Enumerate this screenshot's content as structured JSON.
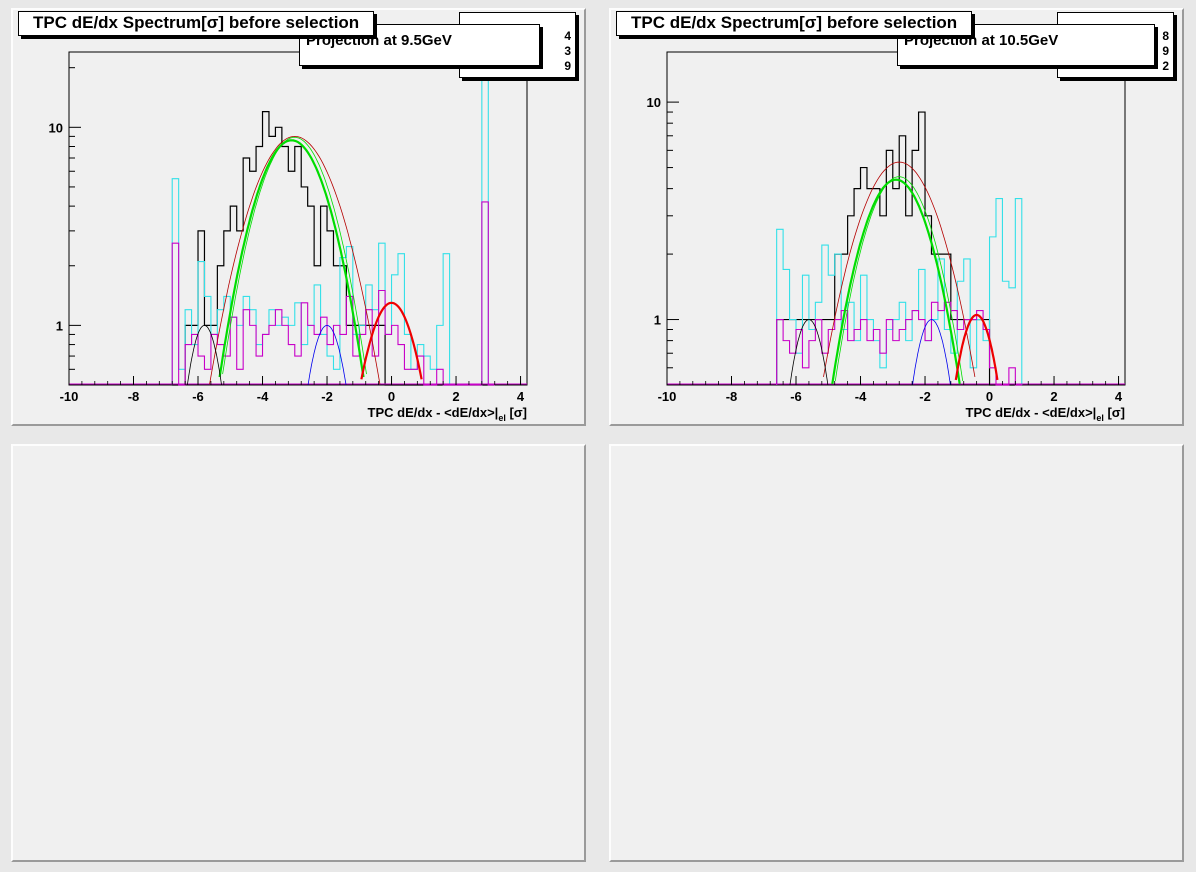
{
  "pads": [
    {
      "title": "TPC dE/dx Spectrum[σ] before selection",
      "projection": "Projection at 9.5GeV",
      "stats": [
        "4",
        "3",
        "9"
      ],
      "xlabel_main": "TPC dE/dx - <dE/dx>|",
      "xlabel_sub": "el",
      "xlabel_unit": " [σ]",
      "xticks": [
        "-10",
        "-8",
        "-6",
        "-4",
        "-2",
        "0",
        "2",
        "4"
      ],
      "yticks": [
        "1",
        "10"
      ]
    },
    {
      "title": "TPC dE/dx Spectrum[σ] before selection",
      "projection": "Projection at 10.5GeV",
      "stats": [
        "8",
        "9",
        "2"
      ],
      "xlabel_main": "TPC dE/dx - <dE/dx>|",
      "xlabel_sub": "el",
      "xlabel_unit": " [σ]",
      "xticks": [
        "-10",
        "-8",
        "-6",
        "-4",
        "-2",
        "0",
        "2",
        "4"
      ],
      "yticks": [
        "1",
        "10"
      ]
    }
  ],
  "colors": {
    "black": "#000000",
    "cyan": "#33e0e8",
    "magenta": "#c800c8",
    "green": "#00dd00",
    "red": "#ee0000",
    "blue": "#0000ee",
    "darkred": "#b40000"
  },
  "chart_data": [
    {
      "type": "line",
      "title": "TPC dE/dx Spectrum[σ] before selection",
      "subtitle": "Projection at 9.5GeV",
      "xlabel": "TPC dE/dx - <dE/dx>|el [σ]",
      "ylabel": "",
      "xlim": [
        -10,
        4.2
      ],
      "ylim": [
        0.5,
        24
      ],
      "y_scale": "log",
      "x": [
        -6.7,
        -6.5,
        -6.3,
        -6.1,
        -5.9,
        -5.7,
        -5.5,
        -5.3,
        -5.1,
        -4.9,
        -4.7,
        -4.5,
        -4.3,
        -4.1,
        -3.9,
        -3.7,
        -3.5,
        -3.3,
        -3.1,
        -2.9,
        -2.7,
        -2.5,
        -2.3,
        -2.1,
        -1.9,
        -1.7,
        -1.5,
        -1.3,
        -1.1,
        -0.9,
        -0.7,
        -0.5,
        -0.3,
        -0.1,
        0.1,
        0.3,
        0.5,
        0.7,
        0.9,
        1.1,
        1.3,
        1.5,
        1.7,
        1.9,
        2.1,
        2.3,
        2.5,
        2.7,
        2.9,
        3.1
      ],
      "series": [
        {
          "color": "#000000",
          "style": "histogram",
          "values": [
            0,
            0,
            1,
            1,
            3,
            1,
            1,
            2,
            3,
            4,
            3,
            7,
            6,
            8,
            12,
            9,
            10,
            8,
            6,
            8,
            5,
            4,
            2,
            4,
            3,
            2,
            2,
            1,
            1,
            1,
            1,
            1,
            1,
            0,
            0,
            0,
            0,
            0,
            0,
            0,
            0,
            0,
            0,
            0,
            0,
            0,
            0,
            0,
            0,
            0
          ]
        },
        {
          "color": "#33e0e8",
          "style": "histogram",
          "values": [
            5.5,
            0.6,
            1.2,
            0.8,
            2.1,
            1.4,
            0.9,
            1.2,
            1.4,
            1.1,
            1.0,
            1.4,
            1.2,
            0.8,
            0.9,
            1.2,
            1.0,
            1.1,
            1.0,
            1.3,
            0.8,
            1.0,
            1.6,
            0.9,
            0.7,
            0.6,
            2.2,
            2.5,
            0.9,
            1.0,
            1.6,
            1.2,
            2.6,
            0.9,
            1.8,
            2.3,
            0.9,
            0.6,
            0.8,
            0.7,
            0.6,
            1.0,
            2.3,
            0,
            0,
            0,
            0,
            0,
            18,
            0
          ]
        },
        {
          "color": "#c800c8",
          "style": "histogram",
          "values": [
            2.6,
            0,
            0.8,
            0.9,
            0.7,
            0.6,
            0.9,
            0.8,
            0.7,
            1.1,
            0.6,
            1.2,
            1.0,
            0.7,
            0.9,
            1.0,
            1.2,
            1.0,
            0.8,
            0.7,
            1.3,
            1.0,
            0.9,
            1.1,
            0.8,
            1.0,
            0.9,
            1.4,
            0.7,
            0.9,
            1.2,
            0.7,
            1.5,
            0.9,
            1.0,
            0.8,
            0.6,
            0.6,
            0.7,
            0.5,
            0.5,
            0.6,
            0.5,
            0,
            0,
            0,
            0,
            0,
            4.2,
            0
          ]
        },
        {
          "name": "",
          "color": "#b40000",
          "style": "fit-total",
          "amplitude": 9.0,
          "mean": -3.0,
          "sigma": 1.1
        },
        {
          "name": "",
          "color": "#00dd00",
          "style": "fit-pion",
          "amplitude": 8.6,
          "mean": -3.1,
          "sigma": 0.95
        },
        {
          "name": "",
          "color": "#ee0000",
          "style": "fit-electron",
          "amplitude": 1.3,
          "mean": 0.0,
          "sigma": 0.7
        },
        {
          "name": "",
          "color": "#0000ee",
          "style": "fit-kaon",
          "amplitude": 1.0,
          "mean": -2.0,
          "sigma": 0.5
        },
        {
          "name": "",
          "color": "#000000",
          "style": "fit-proton",
          "amplitude": 1.0,
          "mean": -5.8,
          "sigma": 0.45
        }
      ]
    },
    {
      "type": "line",
      "title": "TPC dE/dx Spectrum[σ] before selection",
      "subtitle": "Projection at 10.5GeV",
      "xlabel": "TPC dE/dx - <dE/dx>|el [σ]",
      "ylabel": "",
      "xlim": [
        -10,
        4.2
      ],
      "ylim": [
        0.5,
        17
      ],
      "y_scale": "log",
      "x": [
        -6.5,
        -6.3,
        -6.1,
        -5.9,
        -5.7,
        -5.5,
        -5.3,
        -5.1,
        -4.9,
        -4.7,
        -4.5,
        -4.3,
        -4.1,
        -3.9,
        -3.7,
        -3.5,
        -3.3,
        -3.1,
        -2.9,
        -2.7,
        -2.5,
        -2.3,
        -2.1,
        -1.9,
        -1.7,
        -1.5,
        -1.3,
        -1.1,
        -0.9,
        -0.7,
        -0.5,
        -0.3,
        -0.1,
        0.1,
        0.3,
        0.5,
        0.7,
        0.9
      ],
      "series": [
        {
          "color": "#000000",
          "style": "histogram",
          "values": [
            1,
            1,
            1,
            1,
            1,
            1,
            1,
            1,
            1,
            2,
            2,
            3,
            4,
            5,
            4,
            4,
            3,
            6,
            4,
            7,
            3,
            6,
            9,
            3,
            2,
            2,
            2,
            1,
            1,
            1,
            1,
            1,
            1,
            0,
            0,
            0,
            0,
            0
          ]
        },
        {
          "color": "#33e0e8",
          "style": "histogram",
          "values": [
            2.6,
            1.7,
            1.0,
            0.7,
            1.6,
            0.9,
            1.2,
            2.2,
            1.6,
            2.0,
            0.9,
            1.2,
            0.8,
            1.6,
            1.0,
            0.8,
            0.6,
            0.9,
            1.0,
            1.2,
            0.8,
            1.1,
            1.7,
            0.8,
            1.0,
            1.9,
            0.9,
            0.7,
            1.5,
            1.9,
            0.6,
            1.0,
            0.8,
            2.4,
            3.6,
            1.5,
            1.4,
            3.6
          ]
        },
        {
          "color": "#c800c8",
          "style": "histogram",
          "values": [
            1.0,
            0.8,
            0.7,
            0.9,
            0.6,
            0.8,
            1.0,
            0.7,
            0.9,
            1.0,
            1.1,
            0.8,
            0.9,
            1.0,
            0.8,
            0.9,
            0.7,
            1.0,
            0.8,
            0.9,
            1.0,
            1.1,
            1.0,
            0.8,
            1.2,
            1.1,
            1.2,
            1.1,
            0.9,
            1.0,
            1.0,
            1.1,
            0.9,
            0.6,
            0.5,
            0.5,
            0.6,
            0.5
          ]
        },
        {
          "name": "",
          "color": "#b40000",
          "style": "fit-total",
          "amplitude": 5.3,
          "mean": -2.8,
          "sigma": 1.1
        },
        {
          "name": "",
          "color": "#00dd00",
          "style": "fit-pion",
          "amplitude": 4.4,
          "mean": -2.9,
          "sigma": 0.95
        },
        {
          "name": "",
          "color": "#ee0000",
          "style": "fit-electron",
          "amplitude": 1.05,
          "mean": -0.4,
          "sigma": 0.55
        },
        {
          "name": "",
          "color": "#0000ee",
          "style": "fit-kaon",
          "amplitude": 1.0,
          "mean": -1.8,
          "sigma": 0.5
        },
        {
          "name": "",
          "color": "#000000",
          "style": "fit-proton",
          "amplitude": 1.0,
          "mean": -5.6,
          "sigma": 0.5
        }
      ]
    }
  ]
}
